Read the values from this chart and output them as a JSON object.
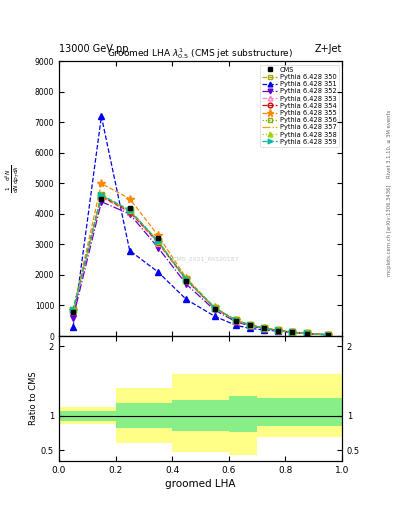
{
  "title": "Groomed LHA $\\lambda^{1}_{0.5}$ (CMS jet substructure)",
  "top_left_label": "13000 GeV pp",
  "top_right_label": "Z+Jet",
  "right_label1": "Rivet 3.1.10, ≥ 3M events",
  "right_label2": "mcplots.cern.ch [arXiv:1306.3436]",
  "watermark": "CMS_2021_PAS20187",
  "xlabel": "groomed LHA",
  "ylabel_main": "1 / mathrmN d mathrmN / mathrmddp_T dlambda",
  "ylabel_ratio": "Ratio to CMS",
  "xlim": [
    0,
    1
  ],
  "ylim_main": [
    0,
    9000
  ],
  "ylim_ratio": [
    0.35,
    2.15
  ],
  "x_edges": [
    0.0,
    0.1,
    0.2,
    0.3,
    0.4,
    0.5,
    0.6,
    0.65,
    0.7,
    0.75,
    0.8,
    0.85,
    0.9,
    1.0
  ],
  "cms_data": [
    800,
    4500,
    4200,
    3200,
    1800,
    900,
    500,
    350,
    250,
    180,
    120,
    80,
    40
  ],
  "series": [
    {
      "label": "Pythia 6.428 350",
      "color": "#aaaa00",
      "linestyle": "--",
      "marker": "s",
      "fillstyle": "none",
      "values": [
        850,
        4600,
        4100,
        3100,
        1850,
        920,
        510,
        360,
        255,
        185,
        125,
        82,
        42
      ]
    },
    {
      "label": "Pythia 6.428 351",
      "color": "#0000ee",
      "linestyle": "--",
      "marker": "^",
      "fillstyle": "full",
      "values": [
        300,
        7200,
        2800,
        2100,
        1200,
        650,
        350,
        250,
        200,
        160,
        110,
        75,
        38
      ]
    },
    {
      "label": "Pythia 6.428 352",
      "color": "#6600cc",
      "linestyle": "-.",
      "marker": "v",
      "fillstyle": "full",
      "values": [
        600,
        4400,
        4000,
        2900,
        1700,
        850,
        470,
        330,
        240,
        175,
        118,
        78,
        40
      ]
    },
    {
      "label": "Pythia 6.428 353",
      "color": "#ff88bb",
      "linestyle": "--",
      "marker": "^",
      "fillstyle": "none",
      "values": [
        820,
        4550,
        4050,
        3050,
        1820,
        910,
        505,
        355,
        252,
        182,
        122,
        81,
        41
      ]
    },
    {
      "label": "Pythia 6.428 354",
      "color": "#cc0000",
      "linestyle": "--",
      "marker": "o",
      "fillstyle": "none",
      "values": [
        830,
        4580,
        4080,
        3080,
        1840,
        915,
        508,
        358,
        253,
        183,
        123,
        81,
        41
      ]
    },
    {
      "label": "Pythia 6.428 355",
      "color": "#ff8800",
      "linestyle": "--",
      "marker": "*",
      "fillstyle": "full",
      "values": [
        840,
        5000,
        4500,
        3300,
        1900,
        940,
        520,
        368,
        260,
        188,
        128,
        84,
        43
      ]
    },
    {
      "label": "Pythia 6.428 356",
      "color": "#88aa00",
      "linestyle": ":",
      "marker": "s",
      "fillstyle": "none",
      "values": [
        845,
        4620,
        4120,
        3110,
        1855,
        922,
        512,
        362,
        256,
        186,
        126,
        83,
        42
      ]
    },
    {
      "label": "Pythia 6.428 357",
      "color": "#ddaa00",
      "linestyle": "-.",
      "marker": null,
      "fillstyle": "none",
      "values": [
        840,
        4610,
        4110,
        3105,
        1850,
        920,
        510,
        360,
        255,
        185,
        125,
        82,
        42
      ]
    },
    {
      "label": "Pythia 6.428 358",
      "color": "#aacc00",
      "linestyle": ":",
      "marker": "^",
      "fillstyle": "full",
      "values": [
        845,
        4615,
        4115,
        3108,
        1852,
        921,
        511,
        361,
        255,
        185,
        125,
        82,
        42
      ]
    },
    {
      "label": "Pythia 6.428 359",
      "color": "#00bbaa",
      "linestyle": "--",
      "marker": ">",
      "fillstyle": "full",
      "values": [
        848,
        4625,
        4125,
        3112,
        1856,
        923,
        513,
        363,
        257,
        186,
        126,
        83,
        42
      ]
    }
  ],
  "ratio_yellow_edges": [
    0.0,
    0.2,
    0.4,
    0.6,
    0.7,
    1.0
  ],
  "ratio_yellow_lo": [
    0.88,
    0.6,
    0.48,
    0.44,
    0.7
  ],
  "ratio_yellow_hi": [
    1.12,
    1.4,
    1.6,
    1.6,
    1.6
  ],
  "ratio_green_edges": [
    0.0,
    0.2,
    0.4,
    0.6,
    0.7,
    1.0
  ],
  "ratio_green_lo": [
    0.93,
    0.82,
    0.78,
    0.76,
    0.85
  ],
  "ratio_green_hi": [
    1.07,
    1.18,
    1.22,
    1.28,
    1.25
  ]
}
